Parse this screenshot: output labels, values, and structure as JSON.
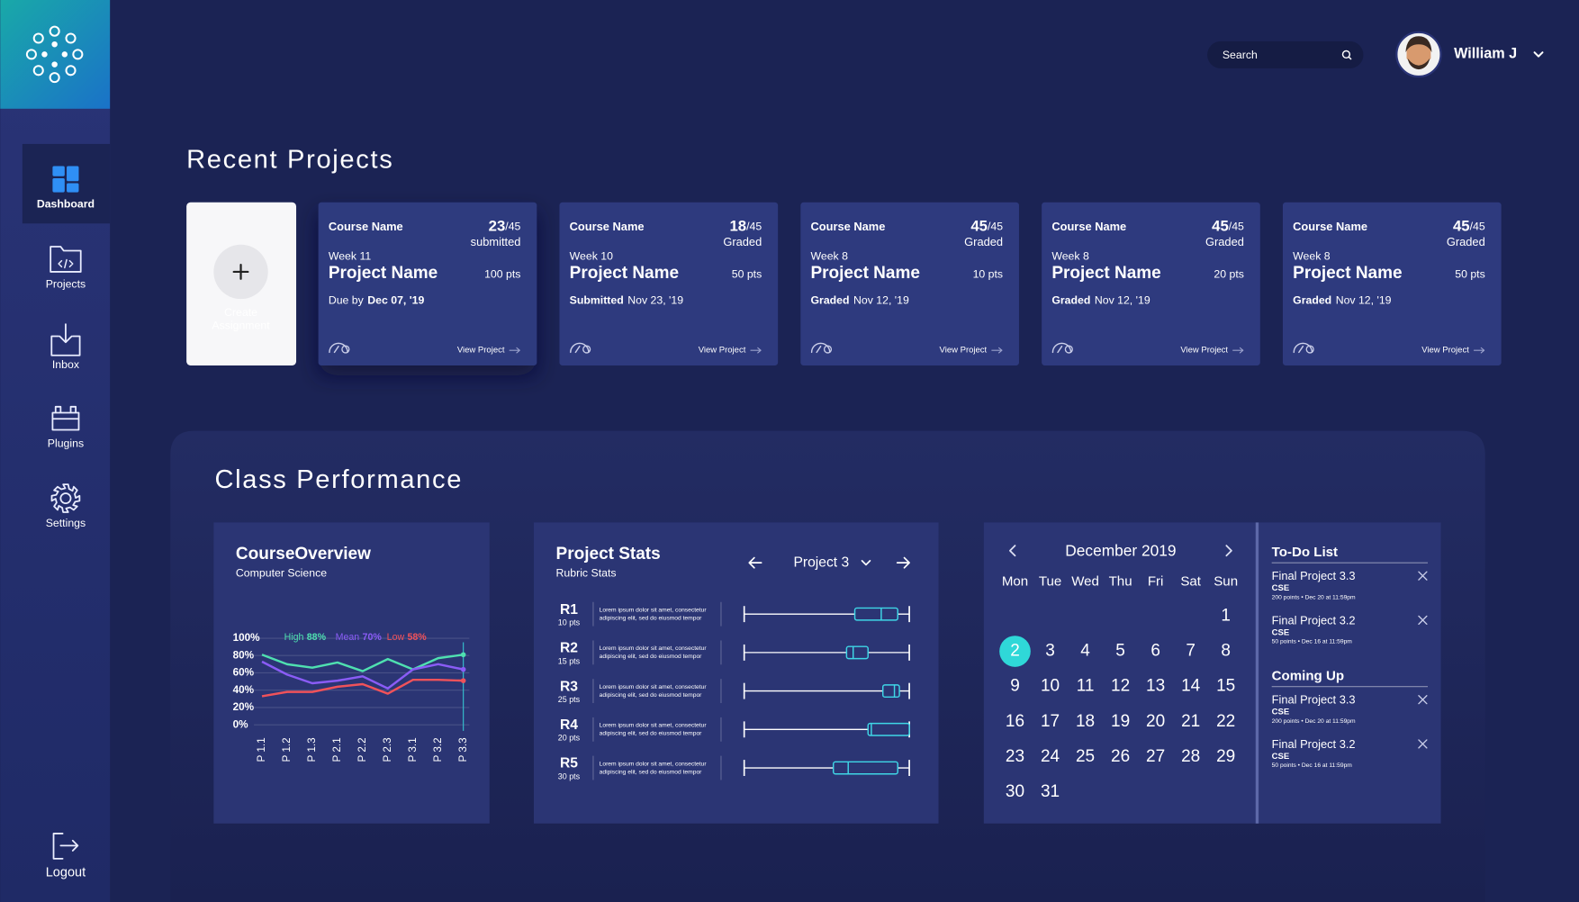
{
  "sidebar": {
    "items": [
      {
        "label": "Dashboard",
        "active": true
      },
      {
        "label": "Projects",
        "active": false
      },
      {
        "label": "Inbox",
        "active": false
      },
      {
        "label": "Plugins",
        "active": false
      },
      {
        "label": "Settings",
        "active": false
      }
    ],
    "logout": "Logout"
  },
  "header": {
    "search_placeholder": "Search",
    "user_name": "William J"
  },
  "recent_projects": {
    "title": "Recent Projects",
    "create_label": [
      "Create",
      "Assignment"
    ],
    "cards": [
      {
        "course": "Course Name",
        "count": "23",
        "total": "/45",
        "status": "submitted",
        "week": "Week 11",
        "name": "Project Name",
        "points": "100 pts",
        "date_prefix": "Due by",
        "date": "Dec 07, '19",
        "bold": "date",
        "link": "View Project"
      },
      {
        "course": "Course Name",
        "count": "18",
        "total": "/45",
        "status": "Graded",
        "week": "Week 10",
        "name": "Project Name",
        "points": "50 pts",
        "date_prefix": "Submitted",
        "date": "Nov 23, '19",
        "bold": "prefix",
        "link": "View Project"
      },
      {
        "course": "Course Name",
        "count": "45",
        "total": "/45",
        "status": "Graded",
        "week": "Week 8",
        "name": "Project Name",
        "points": "10 pts",
        "date_prefix": "Graded",
        "date": "Nov 12, '19",
        "bold": "prefix",
        "link": "View Project"
      },
      {
        "course": "Course Name",
        "count": "45",
        "total": "/45",
        "status": "Graded",
        "week": "Week 8",
        "name": "Project Name",
        "points": "20 pts",
        "date_prefix": "Graded",
        "date": "Nov 12, '19",
        "bold": "prefix",
        "link": "View Project"
      },
      {
        "course": "Course Name",
        "count": "45",
        "total": "/45",
        "status": "Graded",
        "week": "Week 8",
        "name": "Project Name",
        "points": "50 pts",
        "date_prefix": "Graded",
        "date": "Nov 12, '19",
        "bold": "prefix",
        "link": "View Project"
      }
    ]
  },
  "class_performance": {
    "title": "Class Performance",
    "course_overview": {
      "title": "CourseOverview",
      "subtitle": "Computer Science",
      "chart": {
        "type": "line",
        "categories": [
          "P 1.1",
          "P 1.2",
          "P 1.3",
          "P 2.1",
          "P 2.2",
          "P 2.3",
          "P 3.1",
          "P 3.2",
          "P 3.3"
        ],
        "series": [
          {
            "name": "High",
            "label": "88%",
            "color": "#4fe0b0",
            "values": [
              81,
              70,
              66,
              72,
              62,
              76,
              64,
              77,
              81
            ]
          },
          {
            "name": "Mean",
            "label": "70%",
            "color": "#8a5cf6",
            "values": [
              73,
              58,
              48,
              51,
              56,
              42,
              64,
              70,
              64
            ]
          },
          {
            "name": "Low",
            "label": "58%",
            "color": "#f0525a",
            "values": [
              33,
              38,
              38,
              44,
              47,
              36,
              52,
              52,
              51
            ]
          }
        ],
        "ylim": [
          0,
          100
        ],
        "yticks": [
          {
            "value": 100,
            "label": "100%"
          },
          {
            "value": 80,
            "label": "80%"
          },
          {
            "value": 60,
            "label": "60%"
          },
          {
            "value": 40,
            "label": "40%"
          },
          {
            "value": 20,
            "label": "20%"
          },
          {
            "value": 0,
            "label": "0%"
          }
        ],
        "grid": true
      }
    },
    "project_stats": {
      "title": "Project Stats",
      "subtitle": "Rubric Stats",
      "selector": "Project 3",
      "xlim": [
        0,
        100
      ],
      "rows": [
        {
          "id": "R1",
          "points": "10 pts",
          "description": [
            "Lorem ipsum dolor sit amet, consectetur",
            "adipiscing elit, sed do eiusmod tempor"
          ],
          "min": 0,
          "q1": 67,
          "median": 83,
          "q3": 93,
          "max": 100
        },
        {
          "id": "R2",
          "points": "15 pts",
          "description": [
            "Lorem ipsum dolor sit amet, consectetur",
            "adipiscing elit, sed do eiusmod tempor"
          ],
          "min": 0,
          "q1": 62,
          "median": 66,
          "q3": 75,
          "max": 100
        },
        {
          "id": "R3",
          "points": "25 pts",
          "description": [
            "Lorem ipsum dolor sit amet, consectetur",
            "adipiscing elit, sed do eiusmod tempor"
          ],
          "min": 0,
          "q1": 84,
          "median": 91,
          "q3": 94,
          "max": 100
        },
        {
          "id": "R4",
          "points": "20 pts",
          "description": [
            "Lorem ipsum dolor sit amet, consectetur",
            "adipiscing elit, sed do eiusmod tempor"
          ],
          "min": 0,
          "q1": 75,
          "median": 77,
          "q3": 100,
          "max": 100
        },
        {
          "id": "R5",
          "points": "30 pts",
          "description": [
            "Lorem ipsum dolor sit amet, consectetur",
            "adipiscing elit, sed do eiusmod tempor"
          ],
          "min": 0,
          "q1": 54,
          "median": 63,
          "q3": 93,
          "max": 100
        }
      ]
    },
    "calendar": {
      "month": "December 2019",
      "weekdays": [
        "Mon",
        "Tue",
        "Wed",
        "Thu",
        "Fri",
        "Sat",
        "Sun"
      ],
      "weeks": [
        [
          null,
          null,
          null,
          null,
          null,
          null,
          1
        ],
        [
          2,
          3,
          4,
          5,
          6,
          7,
          8
        ],
        [
          9,
          10,
          11,
          12,
          13,
          14,
          15
        ],
        [
          16,
          17,
          18,
          19,
          20,
          21,
          22
        ],
        [
          23,
          24,
          25,
          26,
          27,
          28,
          29
        ],
        [
          30,
          31,
          null,
          null,
          null,
          null,
          null
        ]
      ],
      "selected_day": 2
    },
    "todo": {
      "title": "To-Do List",
      "items": [
        {
          "title": "Final Project 3.3",
          "course": "CSE",
          "meta": "200 points • Dec 20 at 11:59pm"
        },
        {
          "title": "Final Project 3.2",
          "course": "CSE",
          "meta": "50 points • Dec 16 at 11:59pm"
        }
      ]
    },
    "coming_up": {
      "title": "Coming Up",
      "items": [
        {
          "title": "Final Project 3.3",
          "course": "CSE",
          "meta": "200 points • Dec 20 at 11:59pm"
        },
        {
          "title": "Final Project 3.2",
          "course": "CSE",
          "meta": "50 points • Dec 16 at 11:59pm"
        }
      ]
    }
  }
}
